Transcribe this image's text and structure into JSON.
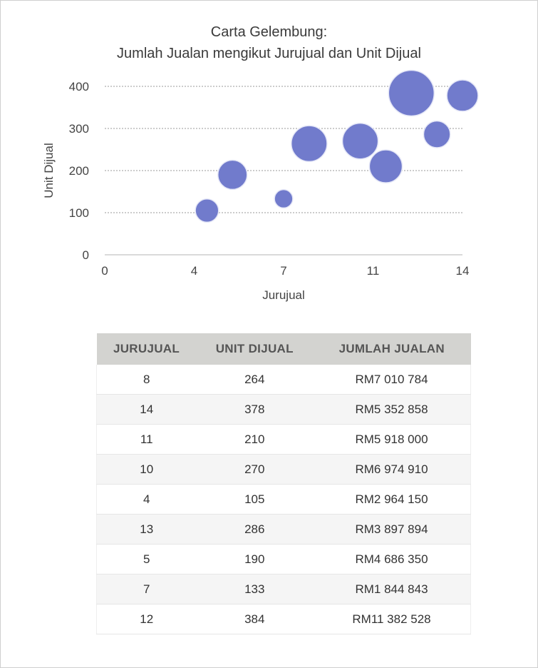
{
  "chart_data": {
    "type": "bubble",
    "title": [
      "Carta Gelembung:",
      "Jumlah Jualan mengikut Jurujual dan Unit Dijual"
    ],
    "xlabel": "Jurujual",
    "ylabel": "Unit Dijual",
    "xlim": [
      0,
      14
    ],
    "ylim": [
      0,
      400
    ],
    "x_tick_labels": [
      "0",
      "4",
      "7",
      "11",
      "14"
    ],
    "y_ticks": [
      0,
      100,
      200,
      300,
      400
    ],
    "grid": "horizontal dotted",
    "bubble_color": "#717bcc",
    "points": [
      {
        "x": 8,
        "y": 264,
        "size": 7010784
      },
      {
        "x": 14,
        "y": 378,
        "size": 5352858
      },
      {
        "x": 11,
        "y": 210,
        "size": 5918000
      },
      {
        "x": 10,
        "y": 270,
        "size": 6974910
      },
      {
        "x": 4,
        "y": 105,
        "size": 2964150
      },
      {
        "x": 13,
        "y": 286,
        "size": 3897894
      },
      {
        "x": 5,
        "y": 190,
        "size": 4686350
      },
      {
        "x": 7,
        "y": 133,
        "size": 1844843
      },
      {
        "x": 12,
        "y": 384,
        "size": 11382528
      }
    ]
  },
  "table": {
    "headers": [
      "JURUJUAL",
      "UNIT DIJUAL",
      "JUMLAH JUALAN"
    ],
    "rows": [
      [
        "8",
        "264",
        "RM7 010 784"
      ],
      [
        "14",
        "378",
        "RM5 352 858"
      ],
      [
        "11",
        "210",
        "RM5 918 000"
      ],
      [
        "10",
        "270",
        "RM6 974 910"
      ],
      [
        "4",
        "105",
        "RM2 964 150"
      ],
      [
        "13",
        "286",
        "RM3 897 894"
      ],
      [
        "5",
        "190",
        "RM4 686 350"
      ],
      [
        "7",
        "133",
        "RM1 844 843"
      ],
      [
        "12",
        "384",
        "RM11 382 528"
      ]
    ]
  }
}
